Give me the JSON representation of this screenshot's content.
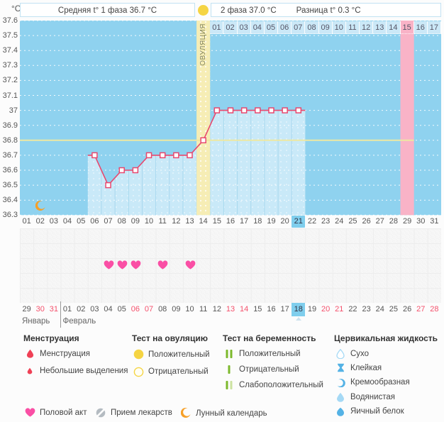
{
  "header": {
    "unit": "°C",
    "phase1_label": "Средняя t° 1 фаза 36.7 °C",
    "phase2_label": "2 фаза 37.0 °C",
    "diff_label": "Разница t° 0.3 °C"
  },
  "chart_data": {
    "type": "line",
    "ylabel": "°C",
    "ylim": [
      36.3,
      37.6
    ],
    "y_ticks": [
      "37.6",
      "37.5",
      "37.4",
      "37.3",
      "37.2",
      "37.1",
      "37",
      "36.9",
      "36.8",
      "36.7",
      "36.6",
      "36.5",
      "36.4",
      "36.3"
    ],
    "x_days": [
      "01",
      "02",
      "03",
      "04",
      "05",
      "06",
      "07",
      "08",
      "09",
      "10",
      "11",
      "12",
      "13",
      "14",
      "15",
      "16",
      "17",
      "18",
      "19",
      "20",
      "21",
      "22",
      "23",
      "24",
      "25",
      "26",
      "27",
      "28",
      "29",
      "30",
      "31"
    ],
    "current_cycle_day": "21",
    "temps": [
      {
        "day": 6,
        "t": 36.7
      },
      {
        "day": 7,
        "t": 36.5
      },
      {
        "day": 8,
        "t": 36.6
      },
      {
        "day": 9,
        "t": 36.6
      },
      {
        "day": 10,
        "t": 36.7
      },
      {
        "day": 11,
        "t": 36.7
      },
      {
        "day": 12,
        "t": 36.7
      },
      {
        "day": 13,
        "t": 36.7
      },
      {
        "day": 14,
        "t": 36.8
      },
      {
        "day": 15,
        "t": 37.0
      },
      {
        "day": 16,
        "t": 37.0
      },
      {
        "day": 17,
        "t": 37.0
      },
      {
        "day": 18,
        "t": 37.0
      },
      {
        "day": 19,
        "t": 37.0
      },
      {
        "day": 20,
        "t": 37.0
      },
      {
        "day": 21,
        "t": 37.0
      }
    ],
    "cover_line": 36.8,
    "ovulation_day": 14,
    "ovulation_label": "ОВУЛЯЦИЯ",
    "expected_period_day": 29,
    "phase2_row": {
      "labels": [
        "01",
        "02",
        "03",
        "04",
        "05",
        "06",
        "07",
        "08",
        "09",
        "10",
        "11",
        "12",
        "13",
        "14",
        "15",
        "16",
        "17"
      ],
      "highlighted": "15"
    },
    "moon_day": 2,
    "intercourse_days": [
      7,
      8,
      9,
      11,
      13
    ]
  },
  "calendar": {
    "months": [
      {
        "name": "Январь",
        "days": [
          {
            "d": "29"
          },
          {
            "d": "30",
            "weekend": true
          },
          {
            "d": "31",
            "weekend": true
          }
        ]
      },
      {
        "name": "Февраль",
        "days": [
          {
            "d": "01"
          },
          {
            "d": "02"
          },
          {
            "d": "03"
          },
          {
            "d": "04"
          },
          {
            "d": "05"
          },
          {
            "d": "06",
            "weekend": true
          },
          {
            "d": "07",
            "weekend": true
          },
          {
            "d": "08"
          },
          {
            "d": "09"
          },
          {
            "d": "10"
          },
          {
            "d": "11"
          },
          {
            "d": "12"
          },
          {
            "d": "13",
            "weekend": true
          },
          {
            "d": "14",
            "weekend": true
          },
          {
            "d": "15"
          },
          {
            "d": "16"
          },
          {
            "d": "17"
          },
          {
            "d": "18",
            "today": true
          },
          {
            "d": "19"
          },
          {
            "d": "20",
            "weekend": true
          },
          {
            "d": "21",
            "weekend": true
          },
          {
            "d": "22"
          },
          {
            "d": "23"
          },
          {
            "d": "24"
          },
          {
            "d": "25"
          },
          {
            "d": "26"
          },
          {
            "d": "27",
            "weekend": true
          },
          {
            "d": "28",
            "weekend": true
          }
        ]
      }
    ]
  },
  "legend": {
    "groups": [
      {
        "title": "Менструация",
        "items": [
          {
            "icon": "drop-large",
            "label": "Менструация"
          },
          {
            "icon": "drop-small",
            "label": "Небольшие выделения"
          }
        ]
      },
      {
        "title": "Тест на овуляцию",
        "items": [
          {
            "icon": "circle-filled",
            "label": "Положительный"
          },
          {
            "icon": "circle-outline",
            "label": "Отрицательный"
          }
        ]
      },
      {
        "title": "Тест на беременность",
        "items": [
          {
            "icon": "bars-two",
            "label": "Положительный"
          },
          {
            "icon": "bar-one",
            "label": "Отрицательный"
          },
          {
            "icon": "bars-weak",
            "label": "Слабоположительный"
          }
        ]
      },
      {
        "title": "Цервикальная жидкость",
        "items": [
          {
            "icon": "drop-outline",
            "label": "Сухо"
          },
          {
            "icon": "sticky",
            "label": "Клейкая"
          },
          {
            "icon": "creamy",
            "label": "Кремообразная"
          },
          {
            "icon": "watery",
            "label": "Водянистая"
          },
          {
            "icon": "eggwhite",
            "label": "Яичный белок"
          }
        ]
      }
    ],
    "footer": [
      {
        "icon": "heart",
        "label": "Половой акт"
      },
      {
        "icon": "pill",
        "label": "Прием лекарств"
      },
      {
        "icon": "moon",
        "label": "Лунный календарь"
      }
    ]
  },
  "colors": {
    "chart_bg": "#8FD2EF",
    "fill": "#C9E9F8",
    "ovulation_band": "#F6EDB5",
    "period_band": "#F9B3C7",
    "phase2_cell": "#CBE8F7",
    "line": "#E8486E",
    "cover_line": "#EDE8A2",
    "highlight_day": "#7FCEED",
    "weekend_text": "#F4516C",
    "heart": "#FA4FA5",
    "drop": "#EF4156",
    "test_yellow": "#F5D443",
    "preg_green": "#7CB92C",
    "preg_green_pale": "#CCE2A0",
    "fluid_blue": "#54B2E5",
    "fluid_blue_light": "#A5D9F5",
    "moon": "#F6A028",
    "pill": "#B4BBC1"
  }
}
